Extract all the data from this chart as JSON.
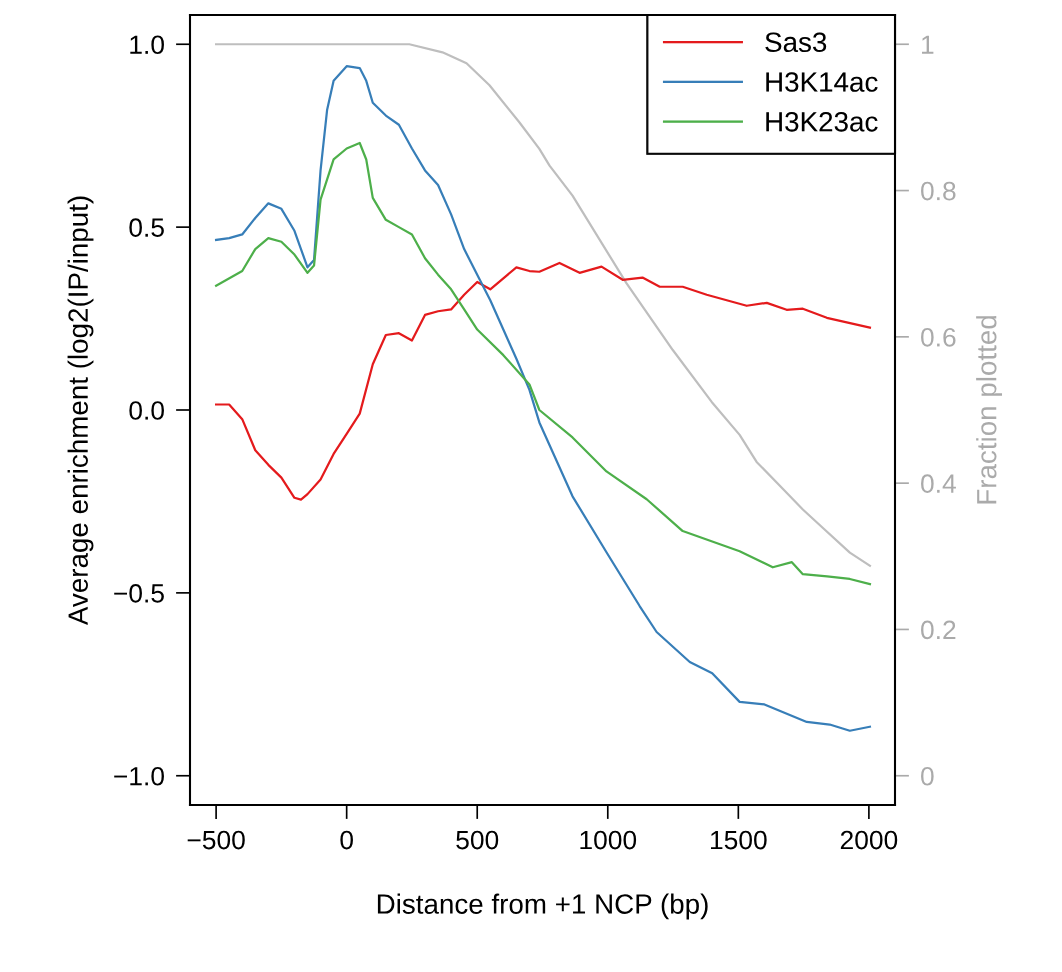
{
  "chart_data": {
    "type": "line",
    "xlabel": "Distance from +1 NCP (bp)",
    "ylabel": "Average enrichment (log2(IP/input)",
    "y2label": "Fraction plotted",
    "xlim": [
      -600,
      2100
    ],
    "xticks": [
      {
        "value": -500,
        "label": "−500"
      },
      0,
      500,
      1000,
      1500,
      2000
    ],
    "ylim": [
      -1.08,
      1.08
    ],
    "yticks": [
      {
        "value": -1.0,
        "label": "−1.0"
      },
      {
        "value": -0.5,
        "label": "−0.5"
      },
      {
        "value": 0.0,
        "label": "0.0"
      },
      {
        "value": 0.5,
        "label": "0.5"
      },
      {
        "value": 1.0,
        "label": "1.0"
      }
    ],
    "y2lim": [
      -0.04,
      1.04
    ],
    "y2ticks": [
      0,
      0.2,
      0.4,
      0.6,
      0.8,
      1
    ],
    "grid": false,
    "legend": "top right",
    "series": [
      {
        "name": "Sas3",
        "color": "#e41a1c",
        "x": [
          -500,
          -450,
          -400,
          -350,
          -300,
          -250,
          -200,
          -175,
          -150,
          -100,
          -50,
          0,
          50,
          100,
          150,
          200,
          250,
          300,
          350,
          400,
          450,
          500,
          550,
          600,
          650,
          700,
          738,
          815,
          892,
          976,
          1057,
          1133,
          1199,
          1287,
          1379,
          1532,
          1609,
          1685,
          1747,
          1839,
          2004
        ],
        "values": [
          0.015,
          0.015,
          -0.025,
          -0.11,
          -0.15,
          -0.185,
          -0.24,
          -0.245,
          -0.23,
          -0.19,
          -0.12,
          -0.065,
          -0.01,
          0.125,
          0.205,
          0.21,
          0.19,
          0.26,
          0.27,
          0.275,
          0.315,
          0.35,
          0.33,
          0.36,
          0.39,
          0.38,
          0.378,
          0.402,
          0.375,
          0.392,
          0.356,
          0.362,
          0.337,
          0.337,
          0.315,
          0.285,
          0.293,
          0.274,
          0.277,
          0.252,
          0.225
        ]
      },
      {
        "name": "H3K14ac",
        "color": "#377eb8",
        "x": [
          -500,
          -450,
          -400,
          -350,
          -300,
          -250,
          -200,
          -175,
          -150,
          -125,
          -100,
          -75,
          -50,
          0,
          50,
          75,
          100,
          150,
          200,
          250,
          300,
          350,
          400,
          450,
          500,
          550,
          600,
          650,
          700,
          738,
          865,
          995,
          1122,
          1187,
          1314,
          1400,
          1505,
          1600,
          1762,
          1850,
          1927,
          2004
        ],
        "values": [
          0.465,
          0.47,
          0.48,
          0.525,
          0.565,
          0.55,
          0.49,
          0.44,
          0.39,
          0.41,
          0.655,
          0.82,
          0.9,
          0.94,
          0.935,
          0.9,
          0.84,
          0.805,
          0.78,
          0.715,
          0.655,
          0.615,
          0.535,
          0.44,
          0.37,
          0.3,
          0.22,
          0.14,
          0.055,
          -0.034,
          -0.236,
          -0.389,
          -0.536,
          -0.607,
          -0.689,
          -0.72,
          -0.798,
          -0.805,
          -0.853,
          -0.86,
          -0.877,
          -0.866
        ]
      },
      {
        "name": "H3K23ac",
        "color": "#4daf4a",
        "x": [
          -500,
          -400,
          -350,
          -300,
          -250,
          -200,
          -150,
          -125,
          -100,
          -50,
          0,
          50,
          75,
          100,
          150,
          200,
          250,
          300,
          350,
          400,
          450,
          500,
          600,
          700,
          738,
          865,
          995,
          1149,
          1287,
          1505,
          1632,
          1705,
          1747,
          1840,
          1927,
          2004
        ],
        "values": [
          0.34,
          0.38,
          0.44,
          0.47,
          0.46,
          0.425,
          0.375,
          0.395,
          0.575,
          0.685,
          0.715,
          0.73,
          0.685,
          0.58,
          0.52,
          0.5,
          0.48,
          0.415,
          0.37,
          0.33,
          0.275,
          0.22,
          0.15,
          0.07,
          0.0,
          -0.075,
          -0.168,
          -0.244,
          -0.331,
          -0.386,
          -0.43,
          -0.416,
          -0.449,
          -0.455,
          -0.462,
          -0.476
        ]
      },
      {
        "color": "#bebebe",
        "axis": "y2",
        "x": [
          -500,
          240,
          367,
          459,
          547,
          662,
          738,
          777,
          865,
          1072,
          1249,
          1398,
          1505,
          1570,
          1685,
          1747,
          1823,
          1927,
          2004
        ],
        "values": [
          1.0,
          1.0,
          0.989,
          0.974,
          0.944,
          0.893,
          0.857,
          0.834,
          0.793,
          0.673,
          0.582,
          0.511,
          0.466,
          0.429,
          0.387,
          0.364,
          0.339,
          0.305,
          0.287
        ]
      }
    ]
  }
}
